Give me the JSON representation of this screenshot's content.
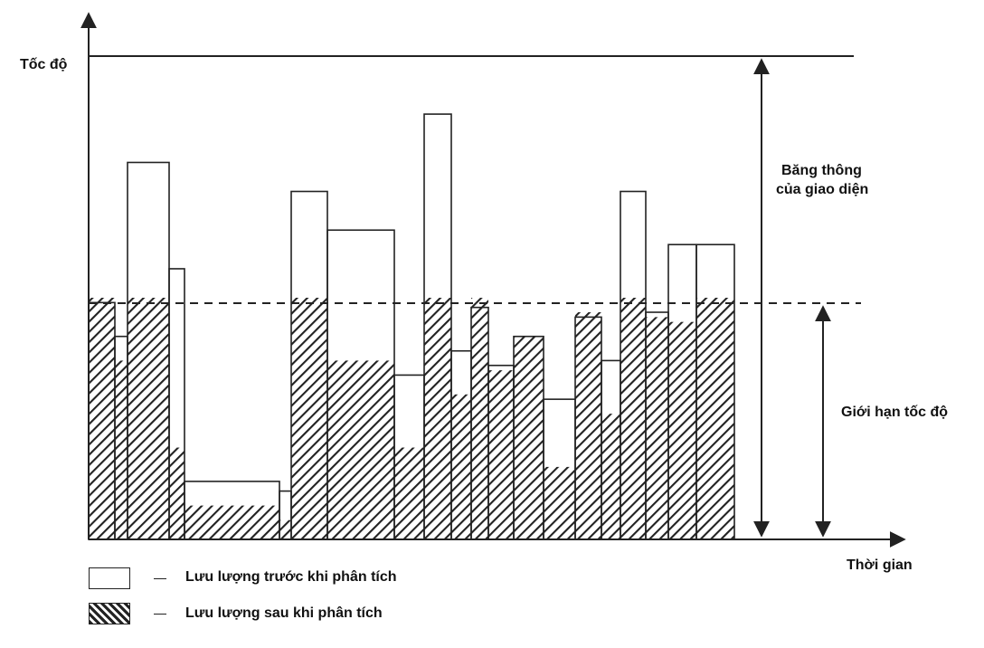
{
  "axes": {
    "y_label": "Tốc độ",
    "x_label": "Thời gian"
  },
  "annotations": {
    "bandwidth_line1": "Băng thông",
    "bandwidth_line2": "của giao diện",
    "speed_limit": "Giới hạn tốc độ"
  },
  "legend": {
    "before_label": "Lưu lượng trước khi phân tích",
    "after_label": "Lưu lượng sau khi phân tích"
  },
  "colors": {
    "line": "#222222",
    "hatch": "#222222",
    "background": "#ffffff"
  },
  "chart_data": {
    "type": "bar",
    "xlabel": "Thời gian",
    "ylabel": "Tốc độ",
    "bandwidth": 100,
    "speed_limit": 50,
    "ylim": [
      0,
      100
    ],
    "series": [
      {
        "name": "Lưu lượng trước khi phân tích",
        "values": [
          49,
          42,
          78,
          56,
          12,
          10,
          72,
          64,
          34,
          88,
          39,
          48,
          36,
          42,
          29,
          46,
          37,
          72,
          47,
          61,
          61
        ]
      },
      {
        "name": "Lưu lượng sau khi phân tích",
        "values": [
          50,
          37,
          50,
          19,
          7,
          4,
          50,
          37,
          19,
          50,
          30,
          50,
          35,
          42,
          15,
          47,
          26,
          50,
          46,
          45,
          50
        ]
      }
    ]
  }
}
